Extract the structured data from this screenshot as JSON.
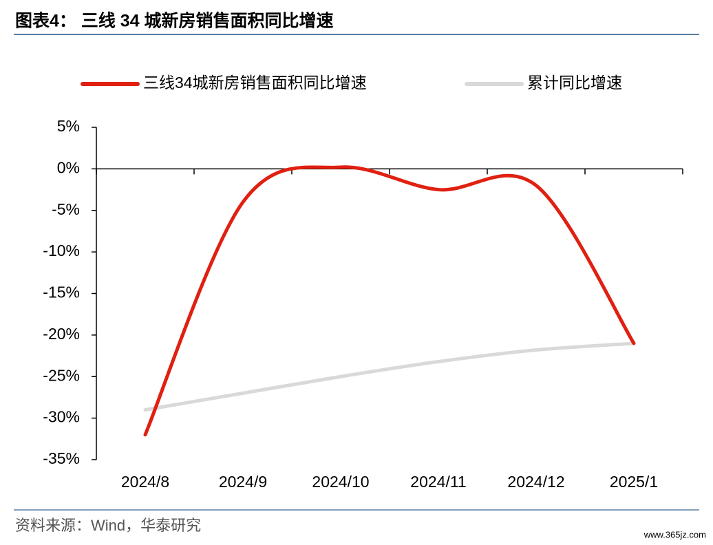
{
  "chart_data": {
    "type": "line",
    "title": "图表4：  三线 34 城新房销售面积同比增速",
    "categories": [
      "2024/8",
      "2024/9",
      "2024/10",
      "2024/11",
      "2024/12",
      "2025/1"
    ],
    "series": [
      {
        "name": "三线34城新房销售面积同比增速",
        "color": "#e02010",
        "values": [
          -32,
          -4,
          0.2,
          -2.5,
          -2,
          -21
        ]
      },
      {
        "name": "累计同比增速",
        "color": "#d9d9d9",
        "values": [
          -29,
          -27,
          -25,
          -23.2,
          -21.8,
          -21
        ]
      }
    ],
    "ylim": [
      -35,
      5
    ],
    "yticks": [
      {
        "value": 5,
        "label": "5%"
      },
      {
        "value": 0,
        "label": "0%"
      },
      {
        "value": -5,
        "label": "-5%"
      },
      {
        "value": -10,
        "label": "-10%"
      },
      {
        "value": -15,
        "label": "-15%"
      },
      {
        "value": -20,
        "label": "-20%"
      },
      {
        "value": -25,
        "label": "-25%"
      },
      {
        "value": -30,
        "label": "-30%"
      },
      {
        "value": -35,
        "label": "-35%"
      }
    ],
    "smooth": true,
    "source": "资料来源：Wind，华泰研究",
    "watermark": "www.365jz.com"
  }
}
